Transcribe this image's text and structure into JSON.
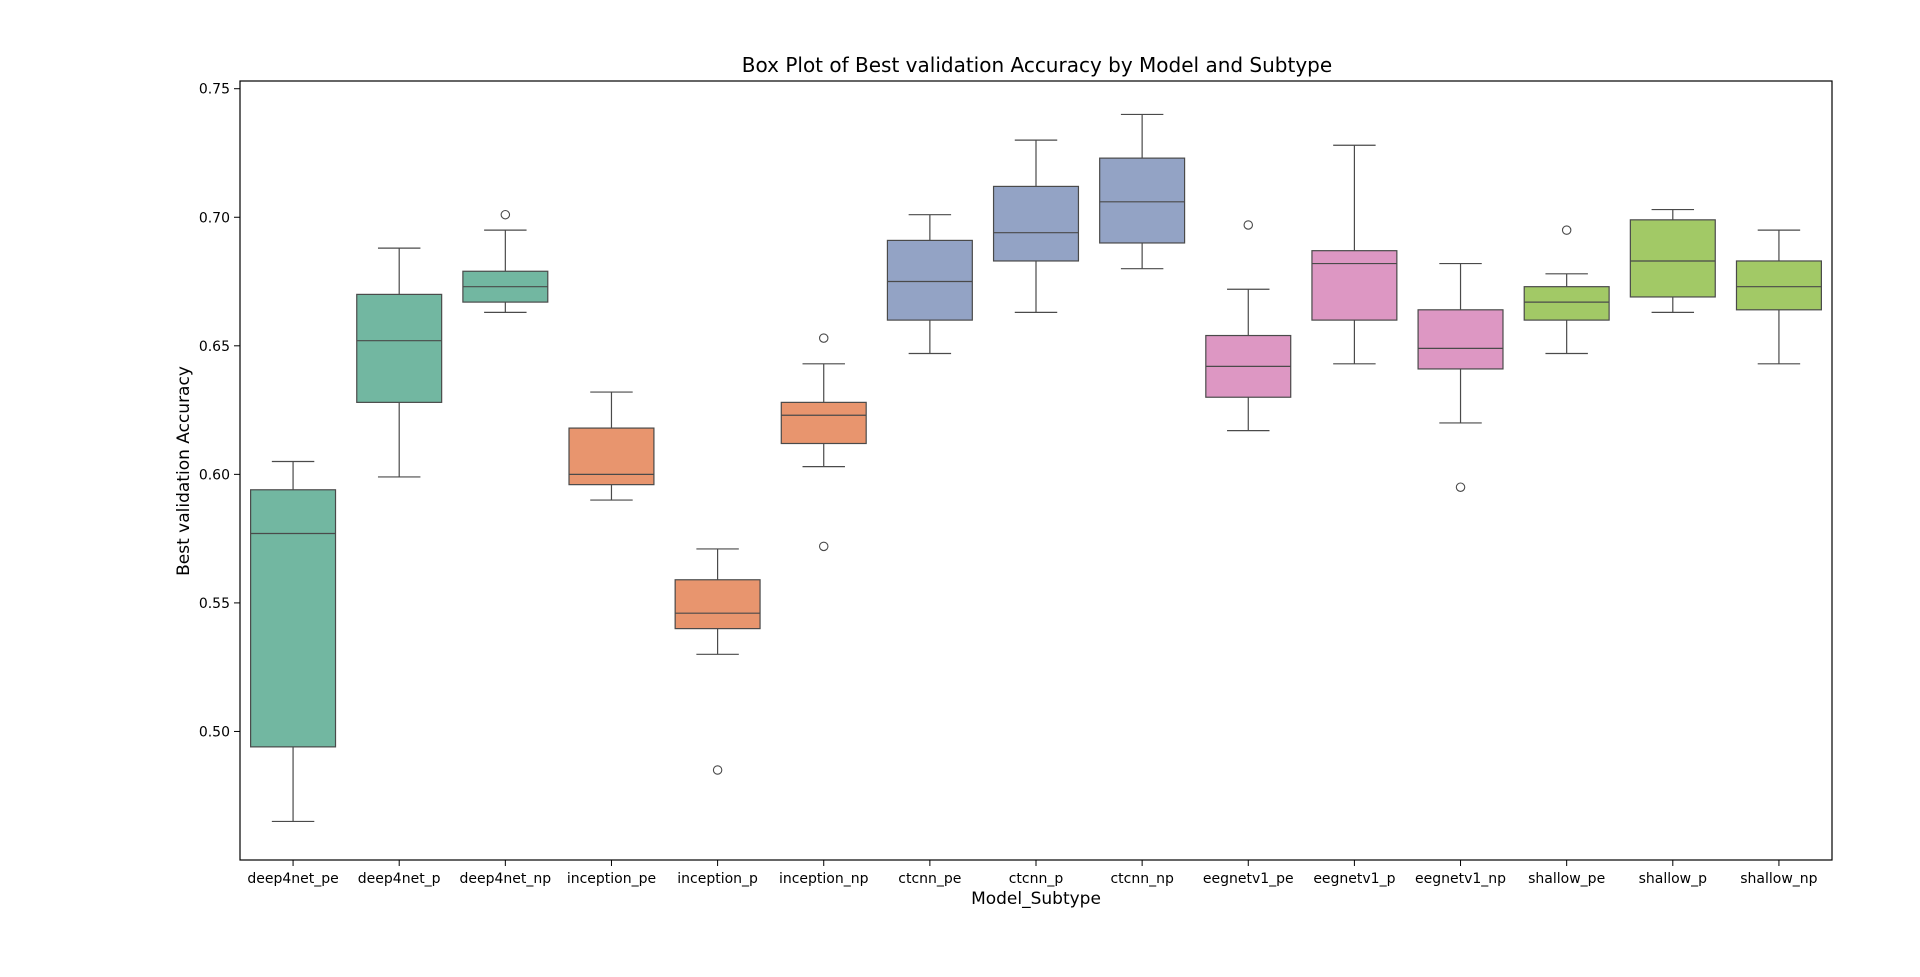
{
  "chart_data": {
    "type": "box",
    "title": "Box Plot of Best validation Accuracy by Model and Subtype",
    "xlabel": "Model_Subtype",
    "ylabel": "Best validation Accuracy",
    "ylim": [
      0.45,
      0.753
    ],
    "yticks": [
      0.5,
      0.55,
      0.6,
      0.65,
      0.7,
      0.75
    ],
    "ytick_labels": [
      "0.50",
      "0.55",
      "0.60",
      "0.65",
      "0.70",
      "0.75"
    ],
    "grid": false,
    "legend": "none",
    "categories": [
      "deep4net_pe",
      "deep4net_p",
      "deep4net_np",
      "inception_pe",
      "inception_p",
      "inception_np",
      "ctcnn_pe",
      "ctcnn_p",
      "ctcnn_np",
      "eegnetv1_pe",
      "eegnetv1_p",
      "eegnetv1_np",
      "shallow_pe",
      "shallow_p",
      "shallow_np"
    ],
    "colors": {
      "deep4net": "#72b7a1",
      "inception": "#e8956e",
      "ctcnn": "#93a3c5",
      "eegnetv1": "#dd97c3",
      "shallow": "#a2c966",
      "line": "#4a4a4a"
    },
    "boxes": [
      {
        "category": "deep4net_pe",
        "group": "deep4net",
        "whisker_low": 0.465,
        "q1": 0.494,
        "median": 0.577,
        "q3": 0.594,
        "whisker_high": 0.605,
        "outliers": []
      },
      {
        "category": "deep4net_p",
        "group": "deep4net",
        "whisker_low": 0.599,
        "q1": 0.628,
        "median": 0.652,
        "q3": 0.67,
        "whisker_high": 0.688,
        "outliers": []
      },
      {
        "category": "deep4net_np",
        "group": "deep4net",
        "whisker_low": 0.663,
        "q1": 0.667,
        "median": 0.673,
        "q3": 0.679,
        "whisker_high": 0.695,
        "outliers": [
          0.701
        ]
      },
      {
        "category": "inception_pe",
        "group": "inception",
        "whisker_low": 0.59,
        "q1": 0.596,
        "median": 0.6,
        "q3": 0.618,
        "whisker_high": 0.632,
        "outliers": []
      },
      {
        "category": "inception_p",
        "group": "inception",
        "whisker_low": 0.53,
        "q1": 0.54,
        "median": 0.546,
        "q3": 0.559,
        "whisker_high": 0.571,
        "outliers": [
          0.485
        ]
      },
      {
        "category": "inception_np",
        "group": "inception",
        "whisker_low": 0.603,
        "q1": 0.612,
        "median": 0.623,
        "q3": 0.628,
        "whisker_high": 0.643,
        "outliers": [
          0.653,
          0.572
        ]
      },
      {
        "category": "ctcnn_pe",
        "group": "ctcnn",
        "whisker_low": 0.647,
        "q1": 0.66,
        "median": 0.675,
        "q3": 0.691,
        "whisker_high": 0.701,
        "outliers": []
      },
      {
        "category": "ctcnn_p",
        "group": "ctcnn",
        "whisker_low": 0.663,
        "q1": 0.683,
        "median": 0.694,
        "q3": 0.712,
        "whisker_high": 0.73,
        "outliers": []
      },
      {
        "category": "ctcnn_np",
        "group": "ctcnn",
        "whisker_low": 0.68,
        "q1": 0.69,
        "median": 0.706,
        "q3": 0.723,
        "whisker_high": 0.74,
        "outliers": []
      },
      {
        "category": "eegnetv1_pe",
        "group": "eegnetv1",
        "whisker_low": 0.617,
        "q1": 0.63,
        "median": 0.642,
        "q3": 0.654,
        "whisker_high": 0.672,
        "outliers": [
          0.697
        ]
      },
      {
        "category": "eegnetv1_p",
        "group": "eegnetv1",
        "whisker_low": 0.643,
        "q1": 0.66,
        "median": 0.682,
        "q3": 0.687,
        "whisker_high": 0.728,
        "outliers": []
      },
      {
        "category": "eegnetv1_np",
        "group": "eegnetv1",
        "whisker_low": 0.62,
        "q1": 0.641,
        "median": 0.649,
        "q3": 0.664,
        "whisker_high": 0.682,
        "outliers": [
          0.595
        ]
      },
      {
        "category": "shallow_pe",
        "group": "shallow",
        "whisker_low": 0.647,
        "q1": 0.66,
        "median": 0.667,
        "q3": 0.673,
        "whisker_high": 0.678,
        "outliers": [
          0.695
        ]
      },
      {
        "category": "shallow_p",
        "group": "shallow",
        "whisker_low": 0.663,
        "q1": 0.669,
        "median": 0.683,
        "q3": 0.699,
        "whisker_high": 0.703,
        "outliers": []
      },
      {
        "category": "shallow_np",
        "group": "shallow",
        "whisker_low": 0.643,
        "q1": 0.664,
        "median": 0.673,
        "q3": 0.683,
        "whisker_high": 0.695,
        "outliers": []
      }
    ]
  }
}
